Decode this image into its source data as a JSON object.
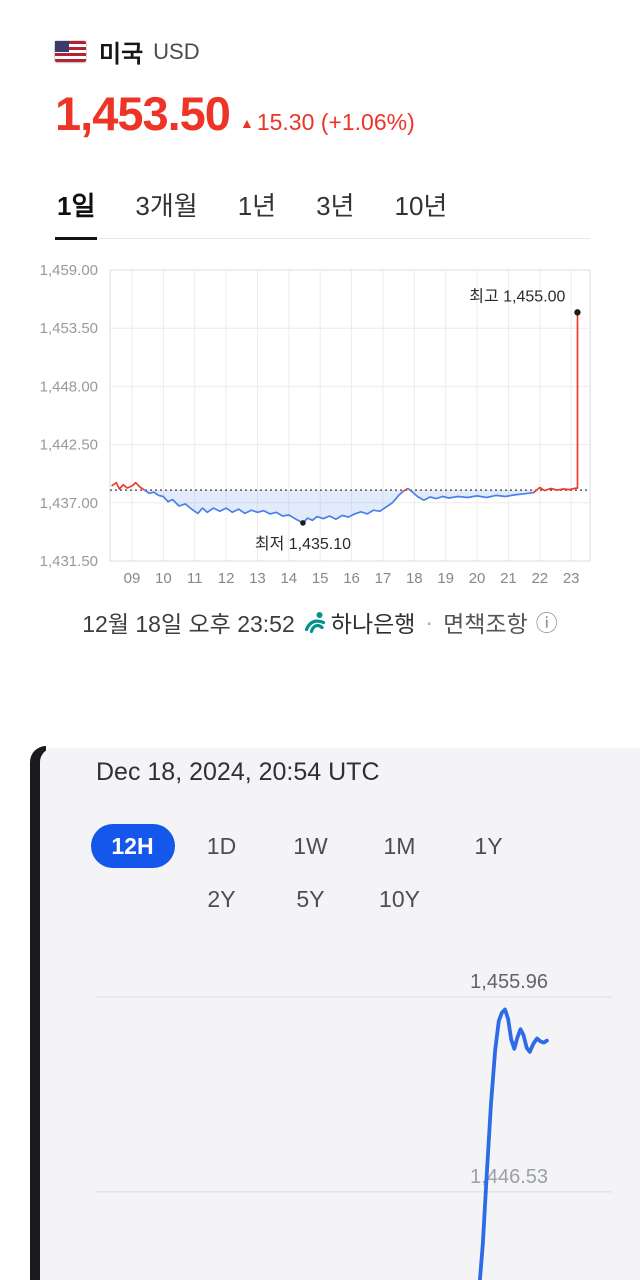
{
  "colors": {
    "price_up_red": "#ee3426",
    "kr_line_blue": "#4a80e8",
    "en_line_blue": "#2e6be6",
    "range_active_blue": "#1457ea",
    "hana_teal": "#00938b"
  },
  "kr_widget": {
    "country": "미국",
    "currency_code": "USD",
    "price": "1,453.50",
    "change_arrow": "▲",
    "change_text": "15.30 (+1.06%)",
    "tabs": [
      {
        "label": "1일",
        "active": true
      },
      {
        "label": "3개월",
        "active": false
      },
      {
        "label": "1년",
        "active": false
      },
      {
        "label": "3년",
        "active": false
      },
      {
        "label": "10년",
        "active": false
      }
    ],
    "footer": {
      "timestamp": "12월 18일 오후 23:52",
      "source": "하나은행",
      "separator": "·",
      "disclaimer": "면책조항",
      "info_icon": "ⓘ"
    }
  },
  "en_widget": {
    "timestamp": "Dec 18, 2024, 20:54 UTC",
    "ranges_row1": [
      {
        "label": "12H",
        "active": true
      },
      {
        "label": "1D",
        "active": false
      },
      {
        "label": "1W",
        "active": false
      },
      {
        "label": "1M",
        "active": false
      },
      {
        "label": "1Y",
        "active": false
      }
    ],
    "ranges_row2": [
      {
        "label": "2Y",
        "active": false
      },
      {
        "label": "5Y",
        "active": false
      },
      {
        "label": "10Y",
        "active": false
      }
    ]
  },
  "chart_data": [
    {
      "type": "line",
      "title": "USD/KRW 1일 (intraday)",
      "y_ticks": [
        "1,459.00",
        "1,453.50",
        "1,448.00",
        "1,442.50",
        "1,437.00",
        "1,431.50"
      ],
      "y_tick_values": [
        1459,
        1453.5,
        1448,
        1442.5,
        1437,
        1431.5
      ],
      "x_ticks": [
        "09",
        "10",
        "11",
        "12",
        "13",
        "14",
        "15",
        "16",
        "17",
        "18",
        "19",
        "20",
        "21",
        "22",
        "23"
      ],
      "x_tick_values": [
        9,
        10,
        11,
        12,
        13,
        14,
        15,
        16,
        17,
        18,
        19,
        20,
        21,
        22,
        23
      ],
      "ylim": [
        1431.5,
        1459
      ],
      "xlim": [
        8.3,
        23.6
      ],
      "baseline": 1438.2,
      "up_color": "#ee3b2e",
      "down_color": "#4a80e8",
      "fill_color": "rgba(74,128,232,0.16)",
      "high_annotation": {
        "label": "최고 1,455.00",
        "x": 23.2,
        "value": 1455.0
      },
      "low_annotation": {
        "label": "최저 1,435.10",
        "x": 14.45,
        "value": 1435.1
      },
      "points": [
        [
          8.35,
          1438.6
        ],
        [
          8.5,
          1438.9
        ],
        [
          8.6,
          1438.3
        ],
        [
          8.72,
          1438.7
        ],
        [
          8.85,
          1438.4
        ],
        [
          9.0,
          1438.6
        ],
        [
          9.12,
          1438.9
        ],
        [
          9.25,
          1438.5
        ],
        [
          9.4,
          1438.2
        ],
        [
          9.55,
          1437.9
        ],
        [
          9.7,
          1438.0
        ],
        [
          9.85,
          1437.7
        ],
        [
          10.0,
          1437.6
        ],
        [
          10.15,
          1437.1
        ],
        [
          10.3,
          1437.3
        ],
        [
          10.5,
          1436.7
        ],
        [
          10.7,
          1436.9
        ],
        [
          10.9,
          1436.4
        ],
        [
          11.1,
          1436.0
        ],
        [
          11.25,
          1436.5
        ],
        [
          11.4,
          1436.1
        ],
        [
          11.6,
          1436.5
        ],
        [
          11.8,
          1436.2
        ],
        [
          12.0,
          1436.5
        ],
        [
          12.2,
          1436.1
        ],
        [
          12.4,
          1436.4
        ],
        [
          12.6,
          1436.0
        ],
        [
          12.8,
          1436.3
        ],
        [
          13.0,
          1436.1
        ],
        [
          13.2,
          1436.25
        ],
        [
          13.4,
          1435.95
        ],
        [
          13.6,
          1436.1
        ],
        [
          13.8,
          1435.75
        ],
        [
          14.0,
          1435.85
        ],
        [
          14.2,
          1435.5
        ],
        [
          14.45,
          1435.1
        ],
        [
          14.6,
          1435.55
        ],
        [
          14.75,
          1435.35
        ],
        [
          14.9,
          1435.7
        ],
        [
          15.1,
          1435.5
        ],
        [
          15.3,
          1435.75
        ],
        [
          15.5,
          1435.45
        ],
        [
          15.7,
          1435.8
        ],
        [
          15.9,
          1435.65
        ],
        [
          16.1,
          1435.95
        ],
        [
          16.3,
          1436.15
        ],
        [
          16.5,
          1435.95
        ],
        [
          16.7,
          1436.3
        ],
        [
          16.9,
          1436.2
        ],
        [
          17.1,
          1436.6
        ],
        [
          17.3,
          1437.0
        ],
        [
          17.5,
          1437.7
        ],
        [
          17.65,
          1438.1
        ],
        [
          17.8,
          1438.35
        ],
        [
          17.95,
          1438.0
        ],
        [
          18.1,
          1437.6
        ],
        [
          18.3,
          1437.25
        ],
        [
          18.5,
          1437.55
        ],
        [
          18.7,
          1437.4
        ],
        [
          18.9,
          1437.6
        ],
        [
          19.1,
          1437.45
        ],
        [
          19.4,
          1437.6
        ],
        [
          19.7,
          1437.5
        ],
        [
          20.0,
          1437.65
        ],
        [
          20.3,
          1437.5
        ],
        [
          20.6,
          1437.7
        ],
        [
          20.9,
          1437.6
        ],
        [
          21.2,
          1437.75
        ],
        [
          21.5,
          1437.85
        ],
        [
          21.8,
          1437.95
        ],
        [
          22.0,
          1438.45
        ],
        [
          22.15,
          1438.15
        ],
        [
          22.35,
          1438.35
        ],
        [
          22.55,
          1438.2
        ],
        [
          22.75,
          1438.3
        ],
        [
          22.95,
          1438.25
        ],
        [
          23.1,
          1438.35
        ],
        [
          23.2,
          1438.4
        ],
        [
          23.2,
          1455.0
        ]
      ]
    },
    {
      "type": "line",
      "title": "USD/KRW 12H",
      "line_color": "#2e6be6",
      "gridlines": [
        {
          "value": 1455.96,
          "label": "1,455.96"
        },
        {
          "value": 1446.53,
          "label": "1,446.53"
        }
      ],
      "ylim": [
        1442.27,
        1458.23
      ],
      "xlim": [
        0,
        1
      ],
      "points": [
        [
          0.742,
          1441.5
        ],
        [
          0.75,
          1444.0
        ],
        [
          0.758,
          1447.5
        ],
        [
          0.766,
          1450.8
        ],
        [
          0.774,
          1453.4
        ],
        [
          0.781,
          1454.8
        ],
        [
          0.787,
          1455.2
        ],
        [
          0.793,
          1455.35
        ],
        [
          0.799,
          1454.9
        ],
        [
          0.805,
          1453.9
        ],
        [
          0.811,
          1453.45
        ],
        [
          0.817,
          1454.0
        ],
        [
          0.823,
          1454.4
        ],
        [
          0.829,
          1454.1
        ],
        [
          0.835,
          1453.5
        ],
        [
          0.841,
          1453.3
        ],
        [
          0.848,
          1453.7
        ],
        [
          0.855,
          1453.95
        ],
        [
          0.862,
          1453.8
        ],
        [
          0.868,
          1453.75
        ],
        [
          0.874,
          1453.85
        ]
      ]
    }
  ]
}
